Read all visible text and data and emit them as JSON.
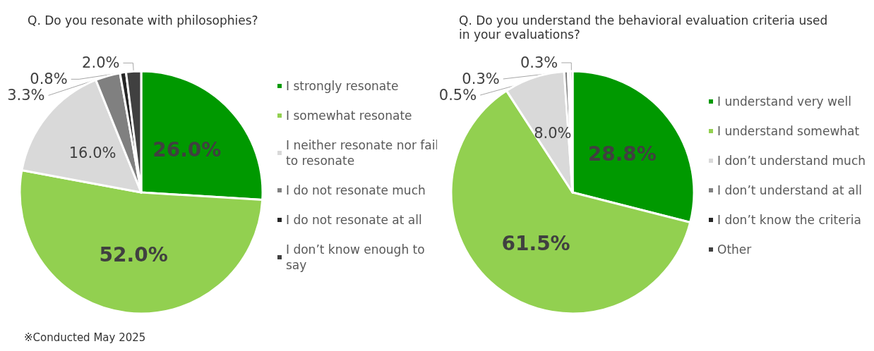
{
  "chart_data": [
    {
      "type": "pie",
      "title": "Q. Do you resonate with philosophies?",
      "categories": [
        "I strongly resonate",
        "I somewhat resonate",
        "I neither resonate nor fail to resonate",
        "I do not resonate much",
        "I do not resonate at all",
        "I don’t know enough to say"
      ],
      "values": [
        26.0,
        52.0,
        16.0,
        3.3,
        0.8,
        2.0
      ],
      "value_labels": [
        "26.0%",
        "52.0%",
        "16.0%",
        "3.3%",
        "0.8%",
        "2.0%"
      ],
      "colors": [
        "#009900",
        "#92d050",
        "#d9d9d9",
        "#808080",
        "#262626",
        "#404040"
      ],
      "legend": "right",
      "annotations": [
        "※Conducted May 2025"
      ]
    },
    {
      "type": "pie",
      "title": "Q. Do you understand the behavioral evaluation criteria used in your evaluations?",
      "categories": [
        "I understand very well",
        "I understand somewhat",
        "I don’t understand much",
        "I don’t understand at all",
        "I don’t know the criteria",
        "Other"
      ],
      "values": [
        28.8,
        61.5,
        8.0,
        0.5,
        0.3,
        0.3
      ],
      "value_labels": [
        "28.8%",
        "61.5%",
        "8.0%",
        "0.5%",
        "0.3%",
        "0.3%"
      ],
      "colors": [
        "#009900",
        "#92d050",
        "#d9d9d9",
        "#808080",
        "#262626",
        "#404040"
      ],
      "legend": "right"
    }
  ]
}
